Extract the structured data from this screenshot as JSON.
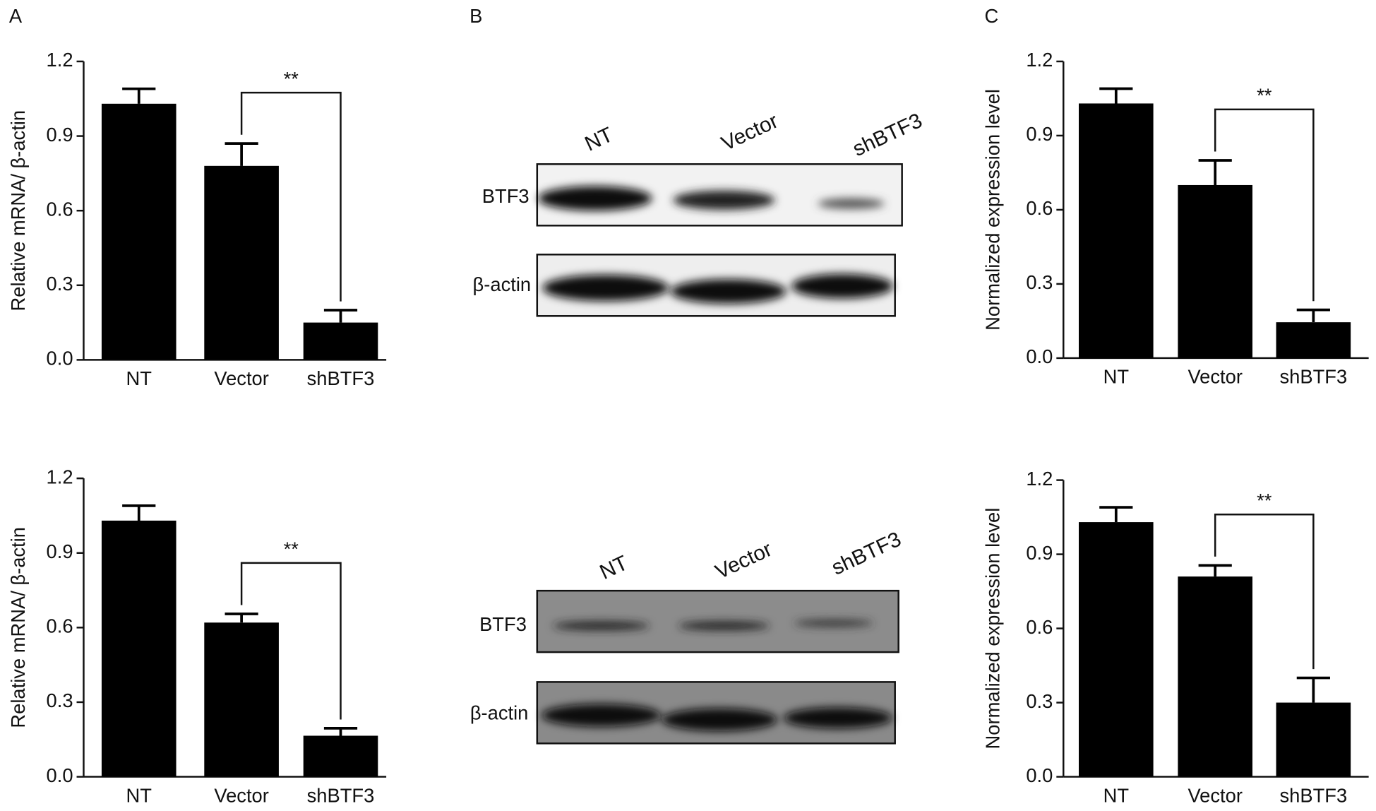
{
  "panel_labels": [
    "A",
    "B",
    "C"
  ],
  "blots": [
    {
      "lanes": [
        "NT",
        "Vector",
        "shBTF3"
      ],
      "rows": [
        "BTF3",
        "β-actin"
      ]
    },
    {
      "lanes": [
        "NT",
        "Vector",
        "shBTF3"
      ],
      "rows": [
        "BTF3",
        "β-actin"
      ]
    }
  ],
  "chart_data": [
    {
      "type": "bar",
      "y_label": "Relative mRNA/ β-actin",
      "categories": [
        "NT",
        "Vector",
        "shBTF3"
      ],
      "values": [
        1.03,
        0.78,
        0.15
      ],
      "errors": [
        0.06,
        0.09,
        0.05
      ],
      "color": "#000000",
      "ylim": [
        0,
        1.2
      ],
      "yticks": [
        {
          "value": 0,
          "label": "0.0"
        },
        0.3,
        0.6,
        0.9,
        1.2
      ],
      "annotation": "**"
    },
    {
      "type": "bar",
      "y_label": "Relative mRNA/ β-actin",
      "categories": [
        "NT",
        "Vector",
        "shBTF3"
      ],
      "values": [
        1.03,
        0.62,
        0.165
      ],
      "errors": [
        0.06,
        0.035,
        0.03
      ],
      "color": "#000000",
      "ylim": [
        0,
        1.2
      ],
      "yticks": [
        {
          "value": 0,
          "label": "0.0"
        },
        0.3,
        0.6,
        0.9,
        1.2
      ],
      "annotation": "**"
    },
    {
      "type": "bar",
      "y_label": "Normalized expression level",
      "categories": [
        "NT",
        "Vector",
        "shBTF3"
      ],
      "values": [
        1.03,
        0.7,
        0.145
      ],
      "errors": [
        0.06,
        0.1,
        0.05
      ],
      "color": "#000000",
      "ylim": [
        0,
        1.2
      ],
      "yticks": [
        {
          "value": 0,
          "label": "0.0"
        },
        0.3,
        0.6,
        0.9,
        1.2
      ],
      "annotation": "**"
    },
    {
      "type": "bar",
      "y_label": "Normalized expression level",
      "categories": [
        "NT",
        "Vector",
        "shBTF3"
      ],
      "values": [
        1.03,
        0.81,
        0.3
      ],
      "errors": [
        0.06,
        0.045,
        0.1
      ],
      "color": "#000000",
      "ylim": [
        0,
        1.2
      ],
      "yticks": [
        {
          "value": 0,
          "label": "0.0"
        },
        0.3,
        0.6,
        0.9,
        1.2
      ],
      "annotation": "**"
    }
  ]
}
